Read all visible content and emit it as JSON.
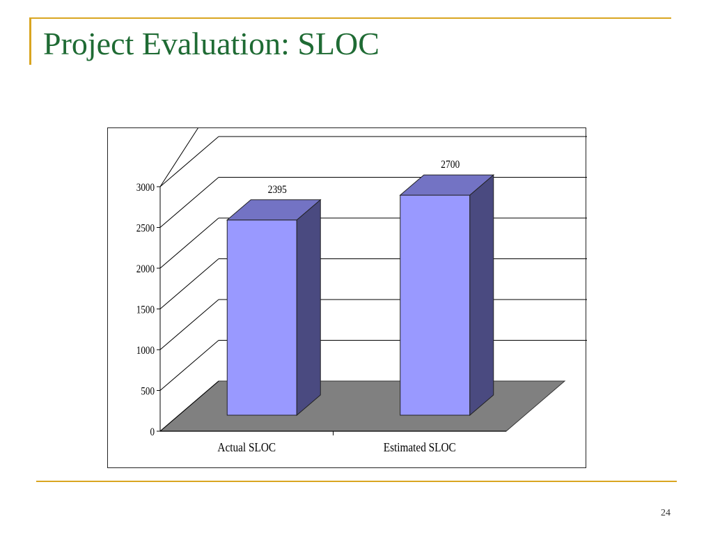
{
  "slide": {
    "title": "Project Evaluation: SLOC",
    "page_number": "24"
  },
  "colors": {
    "accent": "#d9a521",
    "title": "#1f6b34",
    "bar_front": "#9999ff",
    "bar_top": "#7373c4",
    "bar_side": "#4a4a80",
    "floor": "#808080"
  },
  "chart_data": {
    "type": "bar",
    "style": "3d",
    "categories": [
      "Actual SLOC",
      "Estimated SLOC"
    ],
    "values": [
      2395,
      2700
    ],
    "data_labels": [
      "2395",
      "2700"
    ],
    "y_ticks": [
      0,
      500,
      1000,
      1500,
      2000,
      2500,
      3000
    ],
    "y_tick_labels": [
      "0",
      "500",
      "1000",
      "1500",
      "2000",
      "2500",
      "3000"
    ],
    "ylim": [
      0,
      3000
    ],
    "grid": true,
    "legend": false
  }
}
